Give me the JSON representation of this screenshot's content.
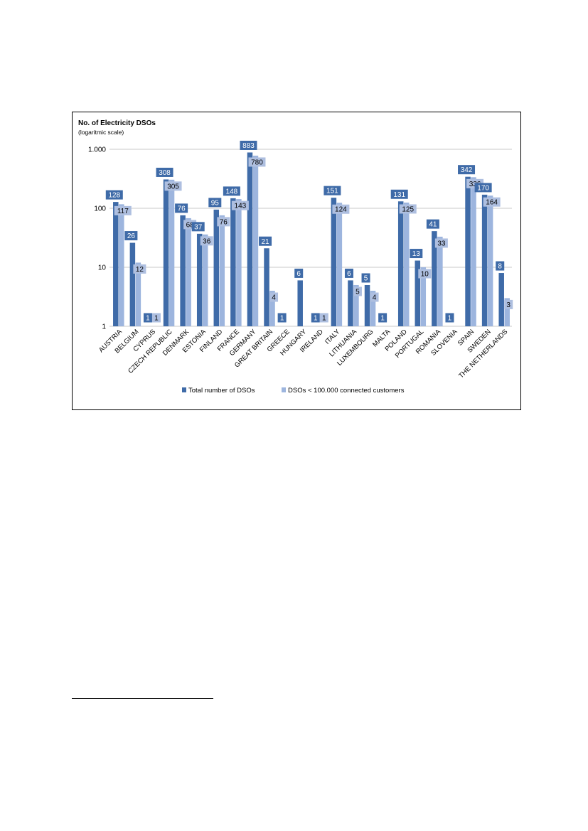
{
  "colors": {
    "total": "#3f6ba8",
    "small": "#9db5de",
    "label_total_bg": "#3f6ba8",
    "label_small_bg": "#aebfe0",
    "grid": "#c8c8c8"
  },
  "chart_data": {
    "type": "bar",
    "title": "No. of  Electricity DSOs",
    "subtitle": "(logaritmic scale)",
    "yscale": "log",
    "ylim": [
      1,
      1000
    ],
    "yticks": [
      1,
      10,
      100,
      1000
    ],
    "ytick_labels": [
      "1",
      "10",
      "100",
      "1.000"
    ],
    "grid": true,
    "legend_position": "bottom",
    "categories": [
      "AUSTRIA",
      "BELGIUM",
      "CYPRUS",
      "CZECH REPUBLIC",
      "DENMARK",
      "ESTONIA",
      "FINLAND",
      "FRANCE",
      "GERMANY",
      "GREAT BRITAIN",
      "GREECE",
      "HUNGARY",
      "IRELAND",
      "ITALY",
      "LITHUANIA",
      "LUXEMBOURG",
      "MALTA",
      "POLAND",
      "PORTUGAL",
      "ROMANIA",
      "SLOVENIA",
      "SPAIN",
      "SWEDEN",
      "THE NETHERLANDS"
    ],
    "series": [
      {
        "name": "Total number of DSOs",
        "values": [
          128,
          26,
          1,
          308,
          76,
          37,
          95,
          148,
          883,
          21,
          1,
          6,
          1,
          151,
          6,
          5,
          1,
          131,
          13,
          41,
          1,
          342,
          170,
          8
        ]
      },
      {
        "name": "DSOs < 100.000 connected customers",
        "values": [
          117,
          12,
          1,
          305,
          68,
          36,
          76,
          143,
          780,
          4,
          null,
          null,
          1,
          124,
          5,
          4,
          null,
          125,
          10,
          33,
          null,
          336,
          164,
          3
        ]
      }
    ]
  }
}
